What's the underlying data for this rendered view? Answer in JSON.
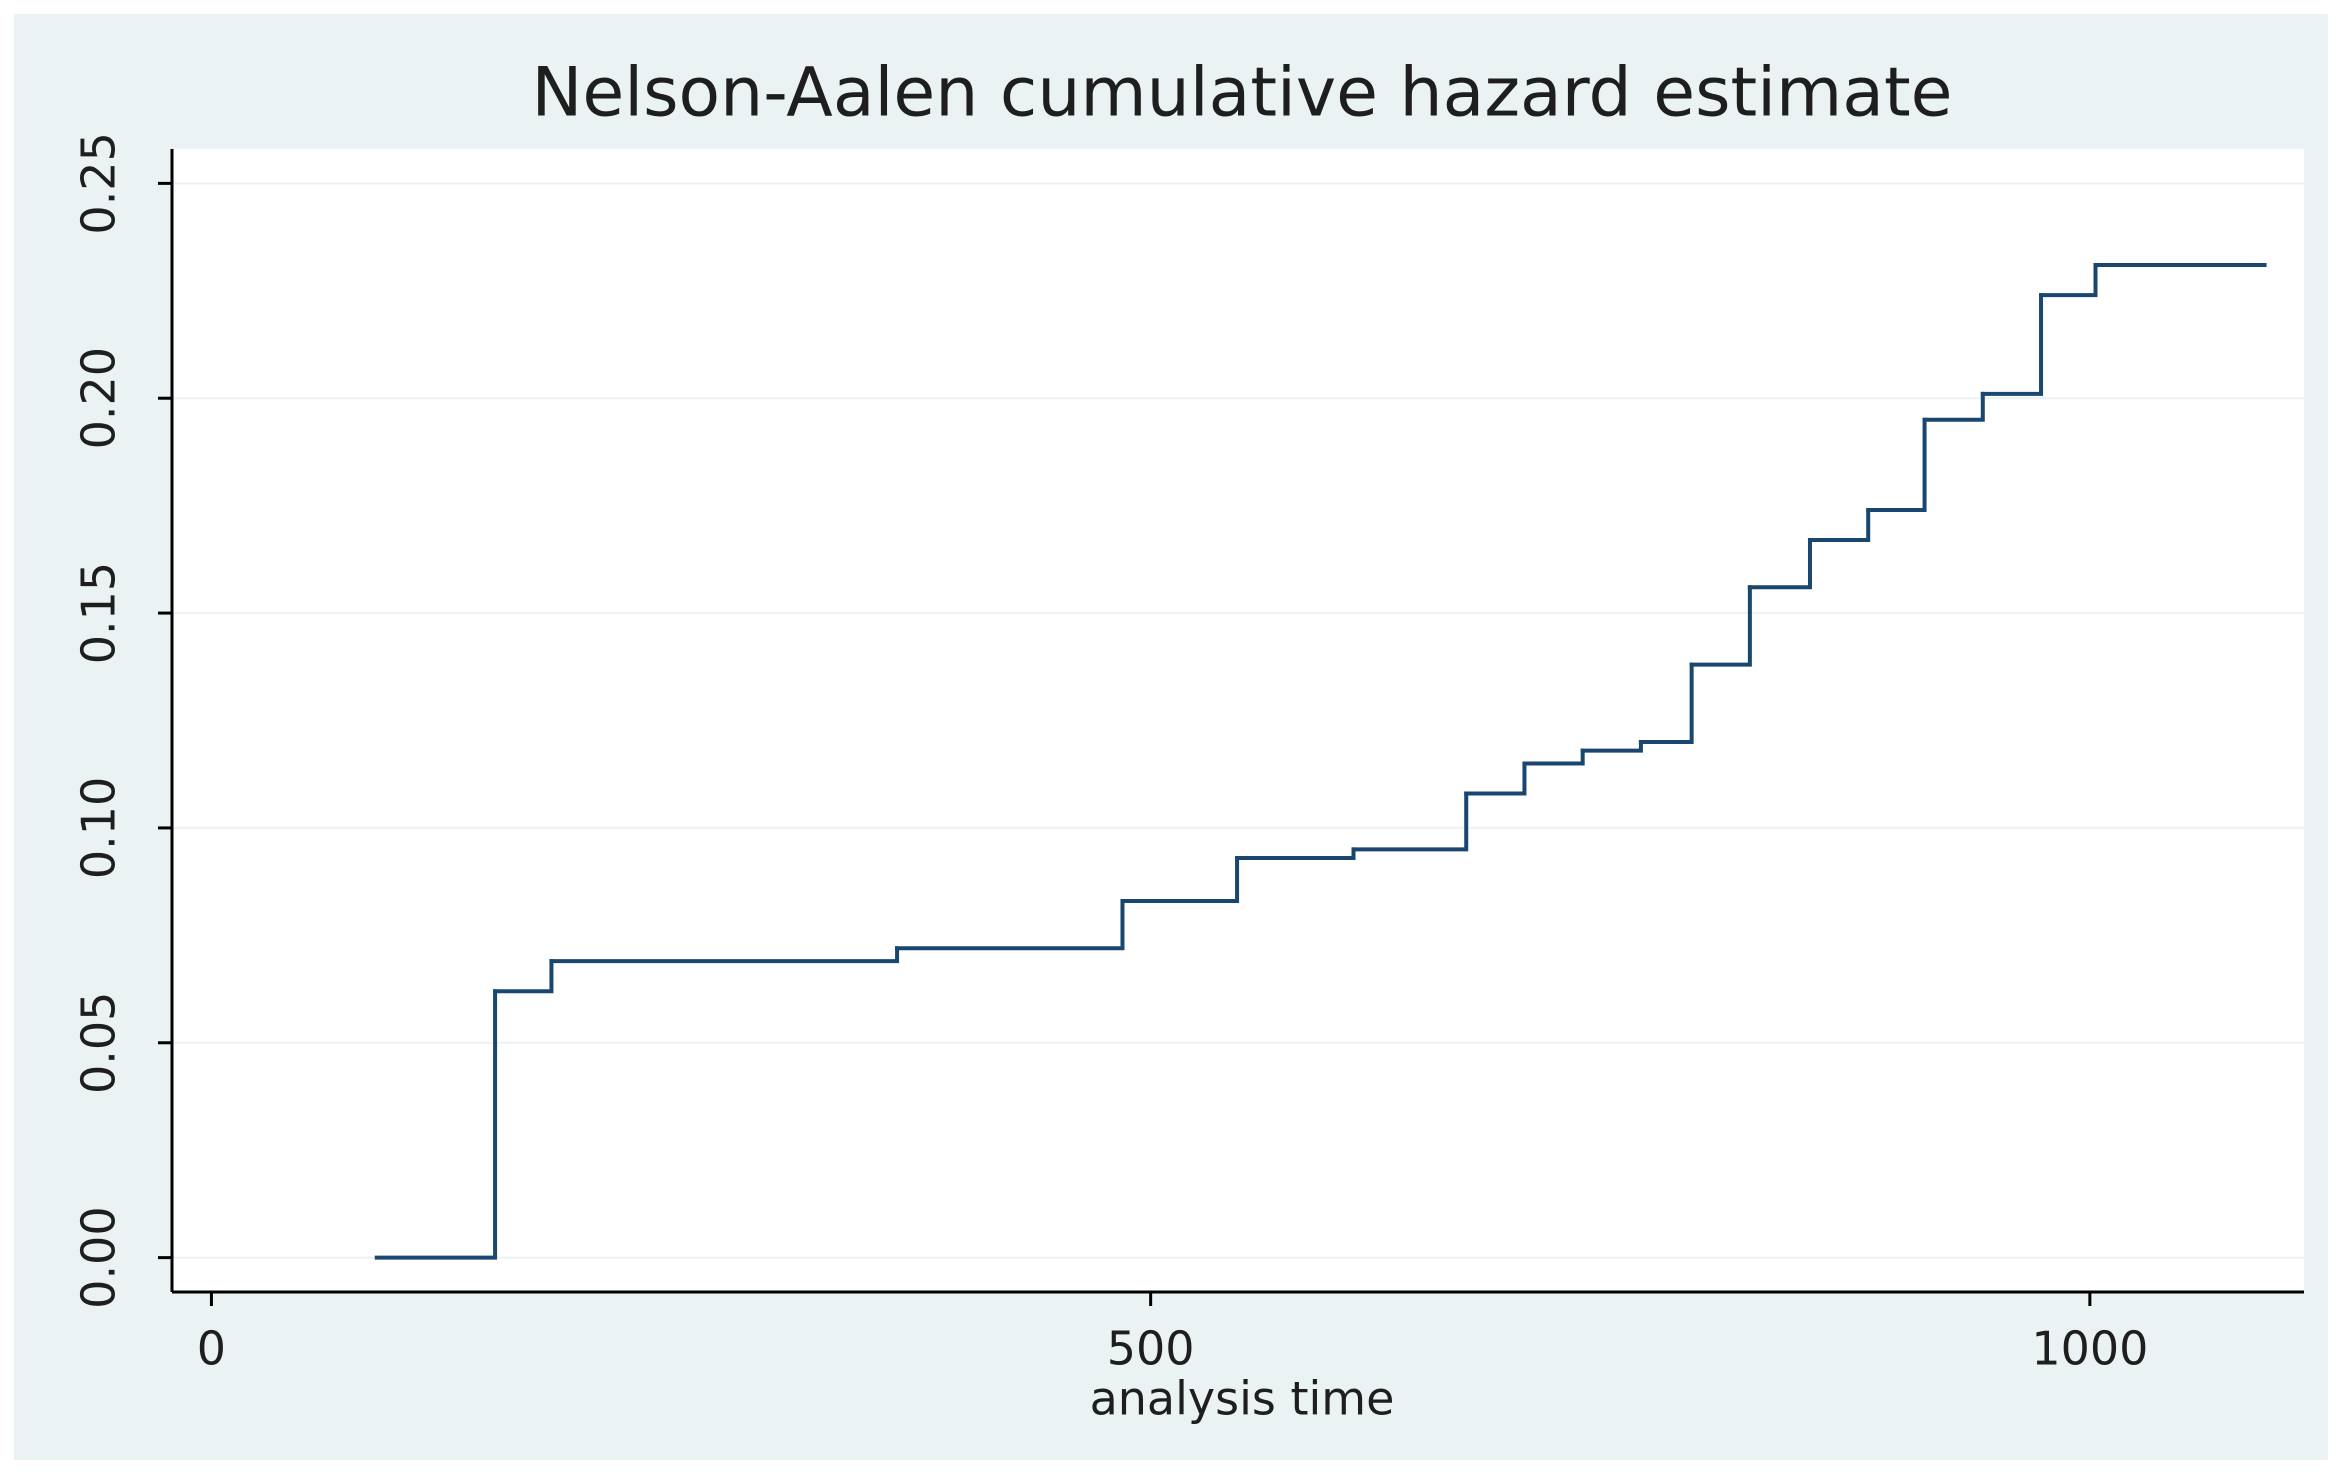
{
  "chart_data": {
    "type": "line",
    "drawstyle": "steps-post",
    "title": "Nelson-Aalen cumulative hazard estimate",
    "x_label": "analysis time",
    "x": [
      88,
      151,
      181,
      365,
      485,
      546,
      608,
      668,
      699,
      730,
      761,
      788,
      819,
      851,
      882,
      912,
      943,
      974,
      1003,
      1093
    ],
    "values": [
      0,
      0.062,
      0.069,
      0.072,
      0.083,
      0.093,
      0.095,
      0.108,
      0.115,
      0.118,
      0.12,
      0.138,
      0.156,
      0.167,
      0.174,
      0.195,
      0.201,
      0.224,
      0.231,
      0.231
    ],
    "color": "#1a476f",
    "xlim": [
      -21,
      1114
    ],
    "xticks": [
      0,
      500,
      1000
    ],
    "ylim": [
      -0.008,
      0.258
    ],
    "yticks": [
      {
        "value": 0,
        "label": "0.00"
      },
      0.05,
      {
        "value": 0.1,
        "label": "0.10"
      },
      0.15,
      {
        "value": 0.2,
        "label": "0.20"
      },
      0.25
    ],
    "grid": true
  }
}
